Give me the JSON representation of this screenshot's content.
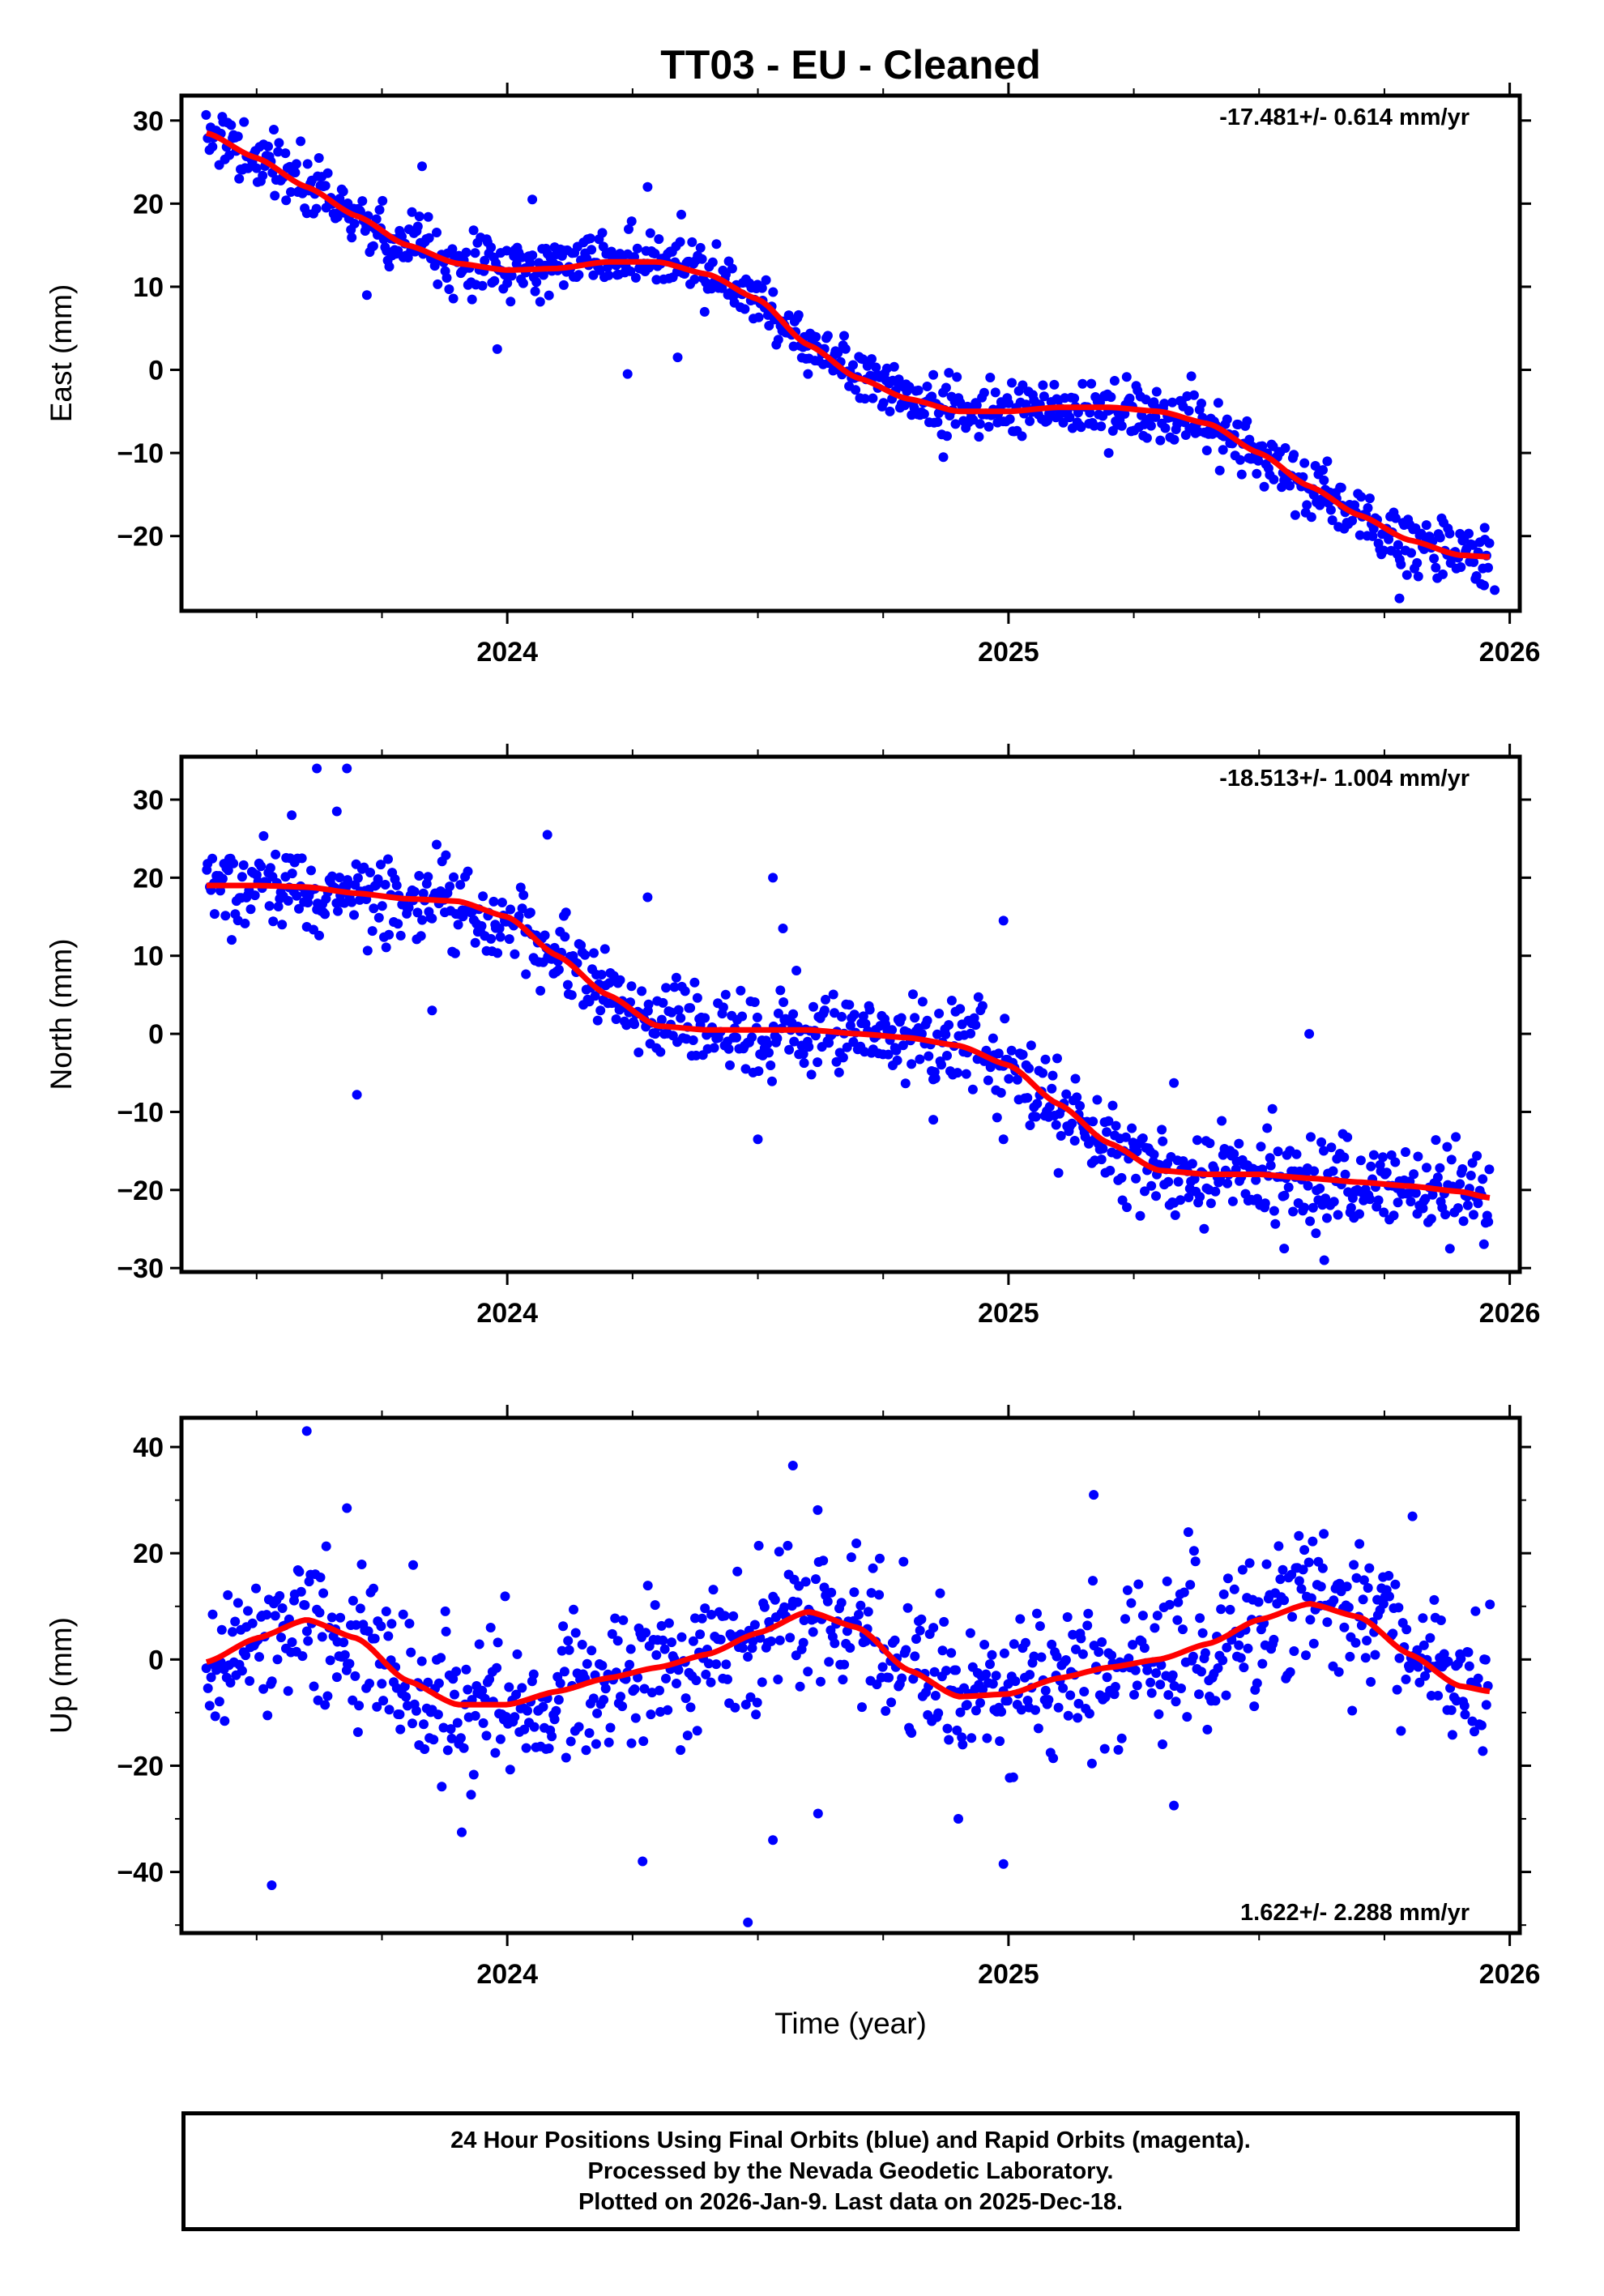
{
  "title": "TT03  - EU - Cleaned",
  "colors": {
    "points": "#0000ff",
    "trend": "#ff0000",
    "axes": "#000000"
  },
  "chart_data": [
    {
      "type": "scatter",
      "component": "east",
      "ylabel": "East (mm)",
      "rate_text": "-17.481+/- 0.614 mm/yr",
      "rate_position": "top-right",
      "xlim": [
        2023.35,
        2026.02
      ],
      "ylim": [
        -29,
        33
      ],
      "yticks": [
        -20,
        -10,
        0,
        10,
        20,
        30
      ],
      "ytick_labels": [
        "−20",
        "−10",
        "0",
        "10",
        "20",
        "30"
      ],
      "xticks": [
        2024,
        2025,
        2026
      ],
      "xtick_labels": [
        "2024",
        "2025",
        "2026"
      ],
      "xlabel": "",
      "model_knots": [
        [
          2023.4,
          28.5
        ],
        [
          2023.5,
          25.5
        ],
        [
          2023.6,
          22
        ],
        [
          2023.7,
          18.5
        ],
        [
          2023.8,
          15
        ],
        [
          2023.9,
          12.8
        ],
        [
          2024.0,
          12
        ],
        [
          2024.1,
          12.2
        ],
        [
          2024.2,
          13
        ],
        [
          2024.3,
          13
        ],
        [
          2024.4,
          11.5
        ],
        [
          2024.5,
          8.5
        ],
        [
          2024.6,
          3
        ],
        [
          2024.7,
          -1
        ],
        [
          2024.8,
          -3.5
        ],
        [
          2024.9,
          -5
        ],
        [
          2025.0,
          -5
        ],
        [
          2025.1,
          -4.5
        ],
        [
          2025.2,
          -4.5
        ],
        [
          2025.3,
          -5
        ],
        [
          2025.4,
          -6.5
        ],
        [
          2025.5,
          -10
        ],
        [
          2025.6,
          -14
        ],
        [
          2025.7,
          -17.5
        ],
        [
          2025.8,
          -20.5
        ],
        [
          2025.9,
          -22.3
        ],
        [
          2025.96,
          -22.5
        ]
      ],
      "scatter_sigma": 1.8,
      "outliers": [
        [
          2023.72,
          9
        ],
        [
          2023.83,
          24.5
        ],
        [
          2023.98,
          2.5
        ],
        [
          2024.05,
          20.5
        ],
        [
          2024.24,
          -0.5
        ],
        [
          2024.28,
          22
        ],
        [
          2024.34,
          1.5
        ],
        [
          2024.6,
          -0.5
        ],
        [
          2024.87,
          -10.5
        ],
        [
          2025.2,
          -10
        ],
        [
          2025.78,
          -27.5
        ],
        [
          2025.97,
          -26.5
        ],
        [
          2025.95,
          -19
        ]
      ]
    },
    {
      "type": "scatter",
      "component": "north",
      "ylabel": "North (mm)",
      "rate_text": "-18.513+/- 1.004 mm/yr",
      "rate_position": "top-right",
      "xlim": [
        2023.35,
        2026.02
      ],
      "ylim": [
        -30.5,
        35.5
      ],
      "yticks": [
        -30,
        -20,
        -10,
        0,
        10,
        20,
        30
      ],
      "ytick_labels": [
        "−30",
        "−20",
        "−10",
        "0",
        "10",
        "20",
        "30"
      ],
      "xticks": [
        2024,
        2025,
        2026
      ],
      "xtick_labels": [
        "2024",
        "2025",
        "2026"
      ],
      "xlabel": "",
      "model_knots": [
        [
          2023.4,
          19
        ],
        [
          2023.5,
          19
        ],
        [
          2023.6,
          18.8
        ],
        [
          2023.7,
          18
        ],
        [
          2023.8,
          17.3
        ],
        [
          2023.9,
          17
        ],
        [
          2024.0,
          15
        ],
        [
          2024.1,
          10
        ],
        [
          2024.2,
          5
        ],
        [
          2024.3,
          1
        ],
        [
          2024.4,
          0.5
        ],
        [
          2024.5,
          0.5
        ],
        [
          2024.6,
          0.5
        ],
        [
          2024.7,
          0
        ],
        [
          2024.8,
          -0.5
        ],
        [
          2024.9,
          -1.5
        ],
        [
          2025.0,
          -4
        ],
        [
          2025.1,
          -9
        ],
        [
          2025.2,
          -14
        ],
        [
          2025.3,
          -17.5
        ],
        [
          2025.4,
          -18
        ],
        [
          2025.5,
          -18
        ],
        [
          2025.6,
          -18.5
        ],
        [
          2025.7,
          -19
        ],
        [
          2025.8,
          -19.5
        ],
        [
          2025.9,
          -20.2
        ],
        [
          2025.96,
          -21
        ]
      ],
      "scatter_sigma": 2.8,
      "outliers": [
        [
          2023.62,
          34
        ],
        [
          2023.68,
          34
        ],
        [
          2023.66,
          28.5
        ],
        [
          2023.57,
          28
        ],
        [
          2023.7,
          -7.8
        ],
        [
          2023.85,
          3
        ],
        [
          2024.08,
          25.5
        ],
        [
          2024.28,
          17.5
        ],
        [
          2024.5,
          -13.5
        ],
        [
          2024.53,
          20
        ],
        [
          2024.55,
          13.5
        ],
        [
          2024.85,
          -11
        ],
        [
          2024.99,
          14.5
        ],
        [
          2024.99,
          -13.5
        ],
        [
          2025.33,
          -6.3
        ],
        [
          2025.6,
          0
        ],
        [
          2025.63,
          -29
        ],
        [
          2025.55,
          -27.5
        ]
      ]
    },
    {
      "type": "scatter",
      "component": "up",
      "ylabel": "Up (mm)",
      "rate_text": "1.622+/- 2.288 mm/yr",
      "rate_position": "bottom-right",
      "xlim": [
        2023.35,
        2026.02
      ],
      "ylim": [
        -51.5,
        45.5
      ],
      "yticks": [
        -40,
        -20,
        0,
        20,
        40
      ],
      "ytick_labels": [
        "−40",
        "−20",
        "0",
        "20",
        "40"
      ],
      "xticks": [
        2024,
        2025,
        2026
      ],
      "xtick_labels": [
        "2024",
        "2025",
        "2026"
      ],
      "xlabel": "Time (year)",
      "model_knots": [
        [
          2023.4,
          -0.5
        ],
        [
          2023.5,
          4
        ],
        [
          2023.6,
          7.5
        ],
        [
          2023.7,
          4
        ],
        [
          2023.8,
          -4
        ],
        [
          2023.9,
          -8.5
        ],
        [
          2024.0,
          -8.5
        ],
        [
          2024.1,
          -6
        ],
        [
          2024.2,
          -3.5
        ],
        [
          2024.3,
          -1.5
        ],
        [
          2024.4,
          1
        ],
        [
          2024.5,
          5
        ],
        [
          2024.6,
          9
        ],
        [
          2024.7,
          6
        ],
        [
          2024.8,
          -2
        ],
        [
          2024.9,
          -7
        ],
        [
          2025.0,
          -6.5
        ],
        [
          2025.1,
          -3.5
        ],
        [
          2025.2,
          -1.5
        ],
        [
          2025.3,
          0
        ],
        [
          2025.4,
          3
        ],
        [
          2025.5,
          7.5
        ],
        [
          2025.6,
          10.5
        ],
        [
          2025.7,
          8
        ],
        [
          2025.8,
          1
        ],
        [
          2025.9,
          -5
        ],
        [
          2025.96,
          -6
        ]
      ],
      "scatter_sigma": 7,
      "outliers": [
        [
          2023.6,
          43
        ],
        [
          2023.53,
          -42.5
        ],
        [
          2024.27,
          -38
        ],
        [
          2024.48,
          -49.5
        ],
        [
          2024.99,
          -38.5
        ],
        [
          2024.9,
          -30
        ],
        [
          2025.33,
          -27.5
        ],
        [
          2025.17,
          31
        ],
        [
          2024.57,
          36.5
        ],
        [
          2023.68,
          28.5
        ],
        [
          2024.62,
          -29
        ],
        [
          2024.53,
          -34
        ]
      ]
    }
  ],
  "footer": {
    "line1": "24 Hour Positions Using Final Orbits (blue) and Rapid Orbits (magenta).",
    "line2": "Processed by the Nevada Geodetic Laboratory.",
    "line3": "Plotted on 2026-Jan-9. Last data on 2025-Dec-18."
  }
}
